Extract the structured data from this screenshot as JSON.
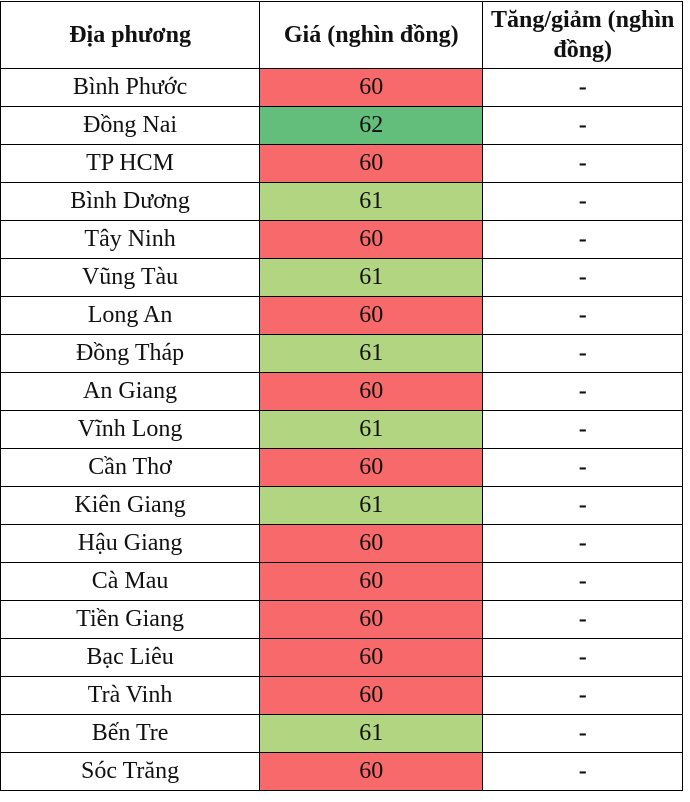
{
  "headers": [
    "Địa phương",
    "Giá (nghìn đồng)",
    "Tăng/giảm (nghìn đồng)"
  ],
  "colors": {
    "low": "#F8696B",
    "mid": "#B1D580",
    "high": "#63BE7B"
  },
  "rows": [
    {
      "place": "Bình Phước",
      "price": "60",
      "change": "-"
    },
    {
      "place": "Đồng Nai",
      "price": "62",
      "change": "-"
    },
    {
      "place": "TP HCM",
      "price": "60",
      "change": "-"
    },
    {
      "place": "Bình Dương",
      "price": "61",
      "change": "-"
    },
    {
      "place": "Tây Ninh",
      "price": "60",
      "change": "-"
    },
    {
      "place": "Vũng Tàu",
      "price": "61",
      "change": "-"
    },
    {
      "place": "Long An",
      "price": "60",
      "change": "-"
    },
    {
      "place": "Đồng Tháp",
      "price": "61",
      "change": "-"
    },
    {
      "place": "An Giang",
      "price": "60",
      "change": "-"
    },
    {
      "place": "Vĩnh Long",
      "price": "61",
      "change": "-"
    },
    {
      "place": "Cần Thơ",
      "price": "60",
      "change": "-"
    },
    {
      "place": "Kiên Giang",
      "price": "61",
      "change": "-"
    },
    {
      "place": "Hậu Giang",
      "price": "60",
      "change": "-"
    },
    {
      "place": "Cà Mau",
      "price": "60",
      "change": "-"
    },
    {
      "place": "Tiền Giang",
      "price": "60",
      "change": "-"
    },
    {
      "place": "Bạc Liêu",
      "price": "60",
      "change": "-"
    },
    {
      "place": "Trà Vinh",
      "price": "60",
      "change": "-"
    },
    {
      "place": "Bến Tre",
      "price": "61",
      "change": "-"
    },
    {
      "place": "Sóc Trăng",
      "price": "60",
      "change": "-"
    }
  ]
}
